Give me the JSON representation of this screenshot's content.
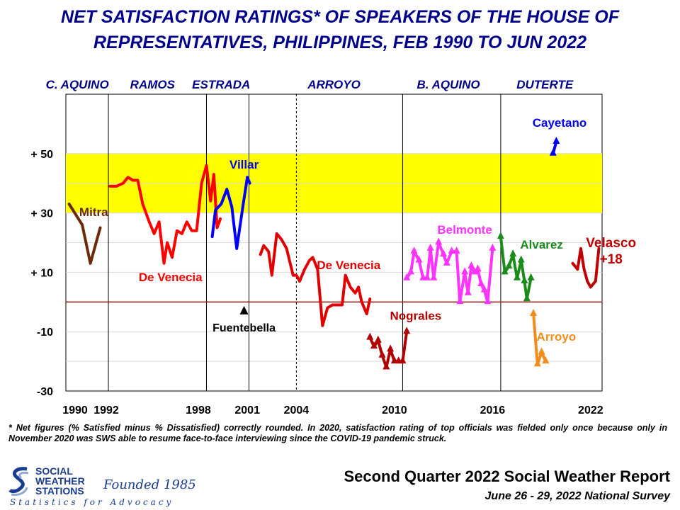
{
  "title": {
    "line1": "NET SATISFACTION RATINGS* OF SPEAKERS OF THE HOUSE OF",
    "line2": "REPRESENTATIVES, PHILIPPINES, FEB 1990 TO JUN 2022"
  },
  "footnote": "* Net figures (% Satisfied minus % Dissatisfied) correctly rounded. In 2020, satisfaction rating of top officials was fielded only once because only in November 2020 was SWS able to resume face-to-face interviewing since the COVID-19 pandemic struck.",
  "report": {
    "title": "Second Quarter 2022 Social Weather Report",
    "date": "June 26 - 29, 2022 National Survey"
  },
  "logo": {
    "org_line1": "SOCIAL",
    "org_line2": "WEATHER",
    "org_line3": "STATIONS",
    "founded": "Founded 1985",
    "tagline": "Statistics for Advocacy"
  },
  "chart_data": {
    "type": "line",
    "xlim": [
      1989.9,
      2022.7
    ],
    "ylim": [
      -30,
      70
    ],
    "yticks": [
      50,
      30,
      10,
      -10,
      -30
    ],
    "ytick_labels": [
      "+ 50",
      "+ 30",
      "+ 10",
      "-10",
      "-30"
    ],
    "xticks": [
      1990,
      1992,
      1998,
      2001,
      2004,
      2010,
      2016,
      2022
    ],
    "xtick_labels": [
      "1990",
      "1992",
      "1998",
      "2001",
      "2004",
      "2010",
      "2016",
      "2022"
    ],
    "highlight_band": [
      30,
      50
    ],
    "zero_line": 0,
    "administrations": [
      {
        "name": "C. AQUINO",
        "center": 1990.6
      },
      {
        "name": "RAMOS",
        "center": 1995.2
      },
      {
        "name": "ESTRADA",
        "center": 1999.4
      },
      {
        "name": "ARROYO",
        "center": 2006.3
      },
      {
        "name": "B. AQUINO",
        "center": 2013.3
      },
      {
        "name": "DUTERTE",
        "center": 2019.2
      }
    ],
    "admin_lines": [
      {
        "x": 1992.5,
        "style": "solid"
      },
      {
        "x": 1998.5,
        "style": "solid"
      },
      {
        "x": 2001.1,
        "style": "solid"
      },
      {
        "x": 2004.0,
        "style": "dashed"
      },
      {
        "x": 2010.5,
        "style": "solid"
      },
      {
        "x": 2016.5,
        "style": "solid"
      }
    ],
    "series": [
      {
        "name": "Mitra",
        "color": "#6b2a0a",
        "markers": false,
        "points": [
          [
            1990.1,
            33
          ],
          [
            1990.9,
            26
          ],
          [
            1991.4,
            13
          ],
          [
            1992.0,
            25
          ]
        ],
        "label": {
          "x": 1991.6,
          "y": 29
        },
        "label_color": "#6b2a0a"
      },
      {
        "name": "De Venecia",
        "color": "#ff0000",
        "markers": false,
        "points": [
          [
            1992.6,
            39
          ],
          [
            1993.0,
            39
          ],
          [
            1993.4,
            40
          ],
          [
            1993.7,
            42
          ],
          [
            1994.0,
            41
          ],
          [
            1994.3,
            41
          ],
          [
            1994.6,
            33
          ],
          [
            1995.0,
            27
          ],
          [
            1995.3,
            23
          ],
          [
            1995.6,
            27
          ],
          [
            1995.9,
            13
          ],
          [
            1996.1,
            20
          ],
          [
            1996.4,
            15
          ],
          [
            1996.7,
            24
          ],
          [
            1997.0,
            23
          ],
          [
            1997.3,
            27
          ],
          [
            1997.6,
            24
          ],
          [
            1997.9,
            24
          ],
          [
            1998.2,
            40
          ],
          [
            1998.5,
            46
          ],
          [
            1998.75,
            34
          ],
          [
            1998.95,
            43
          ],
          [
            1999.15,
            25
          ],
          [
            1999.35,
            28
          ]
        ],
        "label": {
          "x": 1996.3,
          "y": 7
        },
        "label_color": "#ff0000"
      },
      {
        "name": "Villar",
        "color": "#0000ff",
        "markers": false,
        "points": [
          [
            1998.85,
            22
          ],
          [
            1999.05,
            31
          ],
          [
            1999.4,
            33
          ],
          [
            1999.75,
            38
          ],
          [
            2000.05,
            32
          ],
          [
            2000.35,
            18
          ],
          [
            2000.75,
            33
          ],
          [
            2001.0,
            42
          ],
          [
            2001.15,
            40
          ]
        ],
        "label": {
          "x": 2000.8,
          "y": 45
        },
        "label_color": "#0000ff"
      },
      {
        "name": "De Venecia",
        "color": "#e00000",
        "markers": false,
        "points": [
          [
            2001.8,
            16
          ],
          [
            2002.0,
            19
          ],
          [
            2002.3,
            17
          ],
          [
            2002.5,
            9
          ],
          [
            2002.8,
            23
          ],
          [
            2003.1,
            21
          ],
          [
            2003.4,
            18
          ],
          [
            2003.8,
            9
          ],
          [
            2004.0,
            9
          ],
          [
            2004.2,
            7
          ],
          [
            2004.5,
            11
          ],
          [
            2004.8,
            14
          ],
          [
            2005.0,
            15
          ],
          [
            2005.3,
            11
          ],
          [
            2005.6,
            -8
          ],
          [
            2005.9,
            -2
          ],
          [
            2006.2,
            -1
          ],
          [
            2006.5,
            -1
          ],
          [
            2006.8,
            -1
          ],
          [
            2007.0,
            9
          ],
          [
            2007.3,
            5
          ],
          [
            2007.6,
            3
          ],
          [
            2007.8,
            5
          ],
          [
            2008.0,
            0
          ],
          [
            2008.3,
            -4
          ],
          [
            2008.5,
            1
          ]
        ],
        "label": {
          "x": 2007.2,
          "y": 11
        },
        "label_color": "#e00000"
      },
      {
        "name": "Nograles",
        "color": "#b00000",
        "markers": true,
        "points": [
          [
            2008.5,
            -12
          ],
          [
            2008.75,
            -15
          ],
          [
            2009.0,
            -13
          ],
          [
            2009.25,
            -18
          ],
          [
            2009.5,
            -22
          ],
          [
            2009.75,
            -16
          ],
          [
            2010.0,
            -20
          ],
          [
            2010.25,
            -20
          ],
          [
            2010.5,
            -20
          ],
          [
            2010.75,
            -10
          ]
        ],
        "label": {
          "x": 2011.3,
          "y": -6
        },
        "label_color": "#b00000"
      },
      {
        "name": "Belmonte",
        "color": "#ff33ff",
        "markers": true,
        "points": [
          [
            2010.75,
            8
          ],
          [
            2011.0,
            10
          ],
          [
            2011.2,
            17
          ],
          [
            2011.5,
            14
          ],
          [
            2011.75,
            8
          ],
          [
            2012.0,
            8
          ],
          [
            2012.2,
            18
          ],
          [
            2012.4,
            8
          ],
          [
            2012.7,
            20
          ],
          [
            2013.0,
            16
          ],
          [
            2013.2,
            13
          ],
          [
            2013.5,
            17
          ],
          [
            2013.8,
            17
          ],
          [
            2014.0,
            0
          ],
          [
            2014.3,
            10
          ],
          [
            2014.5,
            3
          ],
          [
            2014.7,
            12
          ],
          [
            2014.9,
            10
          ],
          [
            2015.1,
            11
          ],
          [
            2015.3,
            6
          ],
          [
            2015.5,
            4
          ],
          [
            2015.7,
            0
          ],
          [
            2016.0,
            18
          ]
        ],
        "label": {
          "x": 2014.3,
          "y": 23
        },
        "label_color": "#ff33ff"
      },
      {
        "name": "Alvarez",
        "color": "#1b8c1b",
        "markers": true,
        "points": [
          [
            2016.5,
            22
          ],
          [
            2016.75,
            10
          ],
          [
            2017.0,
            12
          ],
          [
            2017.25,
            16
          ],
          [
            2017.5,
            8
          ],
          [
            2017.75,
            14
          ],
          [
            2017.95,
            7
          ],
          [
            2018.1,
            1
          ],
          [
            2018.35,
            8
          ]
        ],
        "label": {
          "x": 2019.0,
          "y": 18
        },
        "label_color": "#1b8c1b"
      },
      {
        "name": "Arroyo",
        "color": "#f28c1a",
        "markers": true,
        "points": [
          [
            2018.5,
            -4
          ],
          [
            2018.75,
            -21
          ],
          [
            2019.0,
            -17
          ],
          [
            2019.25,
            -20
          ]
        ],
        "label": {
          "x": 2019.9,
          "y": -13
        },
        "label_color": "#f28c1a"
      },
      {
        "name": "Cayetano",
        "color": "#0000ff",
        "markers": true,
        "points": [
          [
            2019.7,
            50
          ],
          [
            2019.9,
            54
          ]
        ],
        "label": {
          "x": 2020.1,
          "y": 59
        },
        "label_color": "#0000ff"
      },
      {
        "name": "Velasco",
        "color": "#c00000",
        "markers": false,
        "points": [
          [
            2020.9,
            13
          ],
          [
            2021.2,
            11
          ],
          [
            2021.4,
            18
          ],
          [
            2021.6,
            11
          ],
          [
            2021.8,
            7
          ],
          [
            2022.0,
            5
          ],
          [
            2022.3,
            7
          ],
          [
            2022.5,
            18
          ]
        ],
        "label": {
          "x": 2023.25,
          "y": 18.5
        },
        "label_color": "#c00000"
      }
    ],
    "annotations": [
      {
        "text": "Fuentebella",
        "marker": "up-triangle",
        "marker_at": [
          2000.8,
          -3
        ],
        "label_at": [
          2000.8,
          -10
        ],
        "color": "#000000"
      },
      {
        "text": "+18",
        "at": [
          2023.25,
          13
        ],
        "color": "#c00000"
      }
    ]
  }
}
